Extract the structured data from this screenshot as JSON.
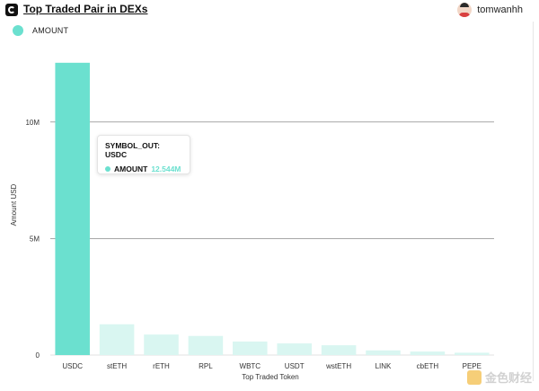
{
  "header": {
    "title": "Top Traded Pair in DEXs",
    "username": "tomwanhh"
  },
  "legend": {
    "label": "AMOUNT",
    "color": "#6be0cf"
  },
  "tooltip": {
    "title": "SYMBOL_OUT: USDC",
    "label": "AMOUNT",
    "value": "12.544M"
  },
  "watermark": {
    "text": "金色财经"
  },
  "chart_data": {
    "type": "bar",
    "xlabel": "Top Traded Token",
    "ylabel": "Amount USD",
    "categories": [
      "USDC",
      "stETH",
      "rETH",
      "RPL",
      "WBTC",
      "USDT",
      "wstETH",
      "LINK",
      "cbETH",
      "PEPE"
    ],
    "values": [
      12.544,
      1.32,
      0.88,
      0.82,
      0.58,
      0.5,
      0.42,
      0.2,
      0.15,
      0.1
    ],
    "ylim": [
      0,
      13
    ],
    "yticks": [
      {
        "value": 0,
        "label": "0"
      },
      {
        "value": 5,
        "label": "5M"
      },
      {
        "value": 10,
        "label": "10M"
      }
    ],
    "highlight_index": 0,
    "colors": {
      "active": "#6be0cf",
      "inactive": "#d9f6f1"
    },
    "grid": true
  }
}
